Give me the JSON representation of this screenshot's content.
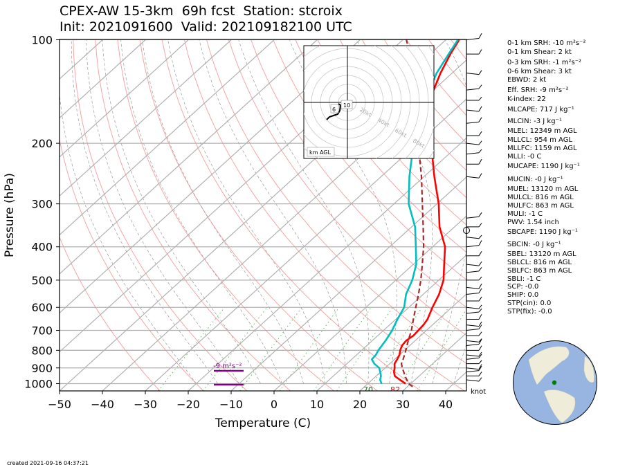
{
  "header": {
    "title_line1": "CPEX-AW 15-3km  69h fcst  Station: stcroix",
    "title_line2": "Init: 2021091600  Valid: 202109182100 UTC"
  },
  "indices": [
    "0-1 km SRH: -10 m²s⁻²",
    "0-1 km Shear: 2 kt",
    "0-3 km SRH: -1 m²s⁻²",
    "0-6 km Shear: 3 kt",
    "EBWD: 2 kt",
    "Eff. SRH: -9 m²s⁻²",
    "K-index: 22",
    "MLCAPE: 717 J kg⁻¹",
    "MLCIN: -3 J kg⁻¹",
    "MLEL: 12349 m AGL",
    "MLLCL: 954 m AGL",
    "MLLFC: 1159 m AGL",
    "MLLI: -0 C",
    "MUCAPE: 1190 J kg⁻¹",
    "MUCIN: -0 J kg⁻¹",
    "MUEL: 13120 m AGL",
    "MULCL: 816 m AGL",
    "MULFC: 863 m AGL",
    "MULI: -1 C",
    "PWV: 1.54 inch",
    "SBCAPE: 1190 J kg⁻¹",
    "SBCIN: -0 J kg⁻¹",
    "SBEL: 13120 m AGL",
    "SBLCL: 816 m AGL",
    "SBLFC: 863 m AGL",
    "SBLI: -1 C",
    "SCP: -0.0",
    "SHIP: 0.0",
    "STP(cin): 0.0",
    "STP(fix): -0.0"
  ],
  "footer": {
    "created": "created 2021-09-16 04:37:21"
  },
  "chart_data": {
    "type": "line",
    "xlabel": "Temperature (C)",
    "ylabel": "Pressure (hPa)",
    "xlim": [
      -50,
      45
    ],
    "ylim": [
      1050,
      100
    ],
    "yscale": "log",
    "x_ticks": [
      -50,
      -40,
      -30,
      -20,
      -10,
      0,
      10,
      20,
      30,
      40
    ],
    "y_ticks": [
      100,
      200,
      300,
      400,
      500,
      600,
      700,
      800,
      900,
      1000
    ],
    "grid": true,
    "series": [
      {
        "name": "",
        "role": "temperature",
        "color": "#ff0000",
        "points": [
          [
            1000,
            28.8
          ],
          [
            975,
            26.5
          ],
          [
            950,
            24.3
          ],
          [
            925,
            23.1
          ],
          [
            900,
            22.2
          ],
          [
            875,
            21.1
          ],
          [
            850,
            20.6
          ],
          [
            825,
            20.0
          ],
          [
            800,
            19.0
          ],
          [
            775,
            18.2
          ],
          [
            750,
            17.9
          ],
          [
            725,
            18.3
          ],
          [
            700,
            18.1
          ],
          [
            675,
            17.9
          ],
          [
            650,
            17.4
          ],
          [
            600,
            15.5
          ],
          [
            550,
            13.7
          ],
          [
            500,
            11.1
          ],
          [
            450,
            7.2
          ],
          [
            400,
            2.9
          ],
          [
            350,
            -3.5
          ],
          [
            300,
            -9.6
          ],
          [
            250,
            -17.6
          ],
          [
            200,
            -26.9
          ],
          [
            170,
            -33.8
          ],
          [
            150,
            -38.3
          ],
          [
            125,
            -42.7
          ],
          [
            110,
            -45.3
          ],
          [
            100,
            -46.9
          ]
        ]
      },
      {
        "name": "",
        "role": "dewpoint",
        "color": "#00bfbf",
        "points": [
          [
            1000,
            23.2
          ],
          [
            975,
            21.9
          ],
          [
            950,
            21.1
          ],
          [
            925,
            19.9
          ],
          [
            900,
            18.6
          ],
          [
            875,
            16.4
          ],
          [
            850,
            14.7
          ],
          [
            825,
            14.5
          ],
          [
            800,
            13.9
          ],
          [
            750,
            13.1
          ],
          [
            700,
            12.0
          ],
          [
            650,
            10.4
          ],
          [
            600,
            8.9
          ],
          [
            550,
            6.0
          ],
          [
            500,
            3.8
          ],
          [
            450,
            0.7
          ],
          [
            400,
            -3.9
          ],
          [
            350,
            -9.2
          ],
          [
            300,
            -16.6
          ],
          [
            250,
            -23.4
          ],
          [
            200,
            -31.0
          ],
          [
            170,
            -35.8
          ],
          [
            150,
            -39.4
          ],
          [
            125,
            -43.6
          ],
          [
            110,
            -45.7
          ],
          [
            100,
            -47.2
          ]
        ]
      },
      {
        "name": "",
        "role": "parcel",
        "color": "#a52a2a",
        "points": [
          [
            1020,
            31.2
          ],
          [
            1000,
            29.5
          ],
          [
            950,
            26.7
          ],
          [
            900,
            24.0
          ],
          [
            875,
            22.7
          ],
          [
            850,
            22.0
          ],
          [
            800,
            20.3
          ],
          [
            750,
            18.4
          ],
          [
            700,
            16.5
          ],
          [
            650,
            14.1
          ],
          [
            600,
            11.6
          ],
          [
            550,
            8.9
          ],
          [
            500,
            5.8
          ],
          [
            450,
            2.1
          ],
          [
            400,
            -2.1
          ],
          [
            350,
            -7.3
          ],
          [
            300,
            -13.4
          ],
          [
            250,
            -20.6
          ],
          [
            200,
            -29.9
          ],
          [
            170,
            -36.4
          ],
          [
            150,
            -41.4
          ],
          [
            125,
            -48.7
          ],
          [
            100,
            -59.2
          ]
        ]
      },
      {
        "name": "",
        "role": "relative-humidity",
        "color": "#008000",
        "points": [
          [
            1000,
            71
          ],
          [
            975,
            72
          ],
          [
            950,
            72
          ],
          [
            925,
            71
          ],
          [
            900,
            66
          ],
          [
            875,
            63
          ],
          [
            850,
            56
          ],
          [
            825,
            53
          ],
          [
            800,
            54
          ],
          [
            750,
            54
          ],
          [
            700,
            52
          ],
          [
            650,
            50
          ],
          [
            600,
            50
          ],
          [
            550,
            45
          ],
          [
            500,
            32
          ],
          [
            450,
            33
          ],
          [
            400,
            27
          ],
          [
            350,
            30
          ],
          [
            300,
            26
          ],
          [
            250,
            26
          ],
          [
            230,
            28
          ],
          [
            210,
            33
          ],
          [
            190,
            30
          ],
          [
            170,
            40
          ],
          [
            150,
            34
          ],
          [
            130,
            38
          ],
          [
            110,
            40
          ],
          [
            100,
            41
          ]
        ]
      }
    ],
    "surface_labels": [
      {
        "text": "70",
        "color": "#008000"
      },
      {
        "text": "82",
        "color": "#ff0000"
      }
    ],
    "srh_label": "-9 m²s⁻²",
    "barb_unit_label": "knot",
    "hodograph": {
      "ring_labels": [
        "20kt",
        "40kt",
        "60kt",
        "80kt"
      ],
      "height_labels": [
        "6",
        "10"
      ],
      "legend": "km AGL"
    }
  }
}
